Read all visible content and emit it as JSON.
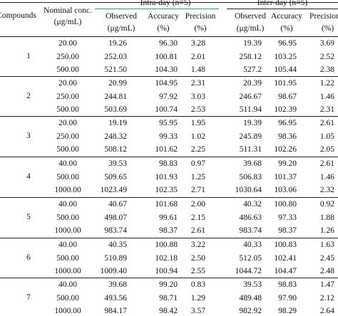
{
  "header": {
    "col_compounds": "Compounds",
    "col_nominal_1": "Nominal conc.",
    "col_nominal_2": "(μg/mL)",
    "group_intra": "Intra-day (n=5)",
    "group_inter": "Inter-day (n=5)",
    "observed": "Observed",
    "observed_unit": "(μg/mL)",
    "accuracy": "Accuracy",
    "accuracy_unit": "(%)",
    "precision": "Precision",
    "precision_unit": "(%)"
  },
  "colors": {
    "rule": "#222222",
    "intra_rule": "#2e9b5a"
  },
  "groups": [
    {
      "compound": "1",
      "rows": [
        [
          "20.00",
          "19.26",
          "96.30",
          "3.28",
          "19.39",
          "96.95",
          "3.69"
        ],
        [
          "250.00",
          "252.03",
          "100.81",
          "2.01",
          "258.12",
          "103.25",
          "2.52"
        ],
        [
          "500.00",
          "521.50",
          "104.30",
          "1.48",
          "527.2",
          "105.44",
          "2.38"
        ]
      ]
    },
    {
      "compound": "2",
      "rows": [
        [
          "20.00",
          "20.99",
          "104.95",
          "2.31",
          "20.39",
          "101.95",
          "1.22"
        ],
        [
          "250.00",
          "244.81",
          "97.92",
          "3.03",
          "246.67",
          "98.67",
          "1.46"
        ],
        [
          "500.00",
          "503.69",
          "100.74",
          "2.53",
          "511.94",
          "102.39",
          "2.31"
        ]
      ]
    },
    {
      "compound": "3",
      "rows": [
        [
          "20.00",
          "19.19",
          "95.95",
          "1.95",
          "19.39",
          "96.95",
          "2.61"
        ],
        [
          "250.00",
          "248.32",
          "99.33",
          "1.02",
          "245.89",
          "98.36",
          "1.05"
        ],
        [
          "500.00",
          "508.12",
          "101.62",
          "2.25",
          "511.31",
          "102.26",
          "2.05"
        ]
      ]
    },
    {
      "compound": "4",
      "rows": [
        [
          "40.00",
          "39.53",
          "98.83",
          "0.97",
          "39.68",
          "99.20",
          "2.61"
        ],
        [
          "500.00",
          "509.65",
          "101.93",
          "1.25",
          "506.83",
          "101.37",
          "1.46"
        ],
        [
          "1000.00",
          "1023.49",
          "102.35",
          "2.71",
          "1030.64",
          "103.06",
          "2.32"
        ]
      ]
    },
    {
      "compound": "5",
      "rows": [
        [
          "40.00",
          "40.67",
          "101.68",
          "2.00",
          "40.32",
          "100.80",
          "0.92"
        ],
        [
          "500.00",
          "498.07",
          "99.61",
          "2.15",
          "486.63",
          "97.33",
          "1.88"
        ],
        [
          "1000.00",
          "983.74",
          "98.37",
          "2.61",
          "983.74",
          "98.37",
          "1.26"
        ]
      ]
    },
    {
      "compound": "6",
      "rows": [
        [
          "40.00",
          "40.35",
          "100.88",
          "3.22",
          "40.33",
          "100.83",
          "1.63"
        ],
        [
          "500.00",
          "510.89",
          "102.18",
          "2.50",
          "512.05",
          "102.41",
          "2.45"
        ],
        [
          "1000.00",
          "1009.40",
          "100.94",
          "2.55",
          "1044.72",
          "104.47",
          "2.48"
        ]
      ]
    },
    {
      "compound": "7",
      "rows": [
        [
          "40.00",
          "39.68",
          "99.20",
          "0.83",
          "39.53",
          "98.83",
          "1.47"
        ],
        [
          "500.00",
          "493.56",
          "98.71",
          "1.29",
          "489.48",
          "97.90",
          "2.12"
        ],
        [
          "1000.00",
          "984.17",
          "98.42",
          "3.57",
          "982.92",
          "98.29",
          "2.64"
        ]
      ]
    }
  ]
}
